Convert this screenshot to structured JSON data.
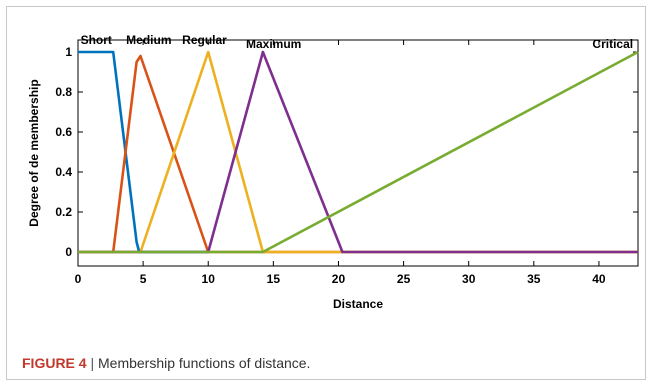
{
  "caption": {
    "figure_label": "FIGURE 4",
    "separator": "|",
    "text": "Membership functions of distance."
  },
  "chart_data": {
    "type": "line",
    "title": "",
    "xlabel": "Distance",
    "ylabel": "Degree of de membership",
    "xlim": [
      0,
      43
    ],
    "ylim": [
      -0.07,
      1.06
    ],
    "x_ticks": [
      0,
      5,
      10,
      15,
      20,
      25,
      30,
      35,
      40
    ],
    "y_ticks": [
      0,
      0.2,
      0.4,
      0.6,
      0.8,
      1
    ],
    "grid": false,
    "series": [
      {
        "name": "Short",
        "color": "#0072BD",
        "x": [
          0,
          2.7,
          4.5,
          4.7,
          10
        ],
        "y": [
          1,
          1,
          0.05,
          0,
          0
        ]
      },
      {
        "name": "Medium",
        "color": "#D95319",
        "x": [
          0,
          2.7,
          4.5,
          4.8,
          10,
          43
        ],
        "y": [
          0,
          0,
          0.95,
          0.98,
          0,
          0
        ]
      },
      {
        "name": "Regular",
        "color": "#EDB120",
        "x": [
          0,
          4.8,
          10,
          14.2,
          20,
          43
        ],
        "y": [
          0,
          0,
          1,
          0,
          0,
          0
        ]
      },
      {
        "name": "Maximum",
        "color": "#7E2F8E",
        "x": [
          0,
          10,
          14.2,
          20,
          20.3,
          43
        ],
        "y": [
          0,
          0,
          1,
          0.05,
          0,
          0
        ]
      },
      {
        "name": "Critical",
        "color": "#77AC30",
        "x": [
          0,
          14.2,
          43
        ],
        "y": [
          0,
          0,
          1
        ]
      }
    ],
    "series_labels": [
      {
        "text": "Short",
        "x": 0.2,
        "y": 1.06
      },
      {
        "text": "Medium",
        "x": 3.7,
        "y": 1.06
      },
      {
        "text": "Regular",
        "x": 8.0,
        "y": 1.06
      },
      {
        "text": "Maximum",
        "x": 12.9,
        "y": 1.04
      },
      {
        "text": "Critical",
        "x": 39.5,
        "y": 1.04
      }
    ]
  }
}
